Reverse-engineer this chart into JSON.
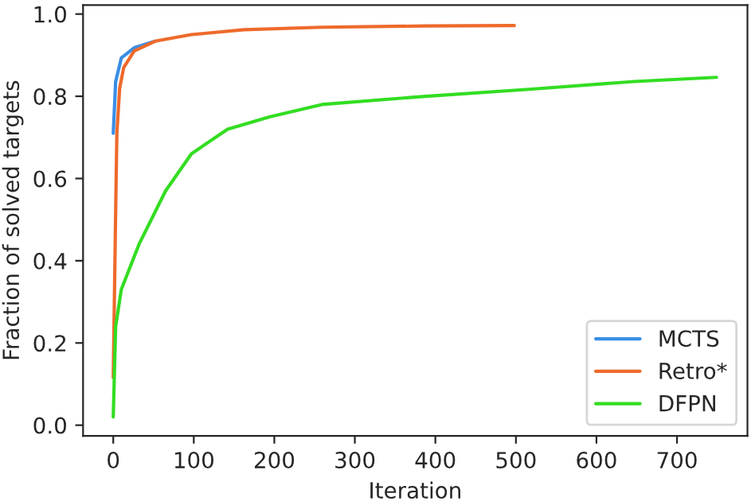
{
  "chart_data": {
    "type": "line",
    "xlabel": "Iteration",
    "ylabel": "Fraction of solved targets",
    "xlim": [
      -37.5,
      787.5
    ],
    "ylim": [
      -0.026,
      1.022
    ],
    "xticks": [
      0,
      100,
      200,
      300,
      400,
      500,
      600,
      700
    ],
    "yticks": [
      {
        "value": 0,
        "label": "0.0"
      },
      0.2,
      0.4,
      0.6,
      0.8,
      {
        "value": 1,
        "label": "1.0"
      }
    ],
    "grid": false,
    "legend": "bottom right",
    "line_style": "solid",
    "marker": "none",
    "series": [
      {
        "name": "MCTS",
        "color": "#3a8ee6",
        "x": [
          0,
          3,
          10,
          26,
          52
        ],
        "values": [
          0.71,
          0.836,
          0.893,
          0.918,
          0.934
        ]
      },
      {
        "name": "Retro*",
        "color": "#ee6a2c",
        "x": [
          0,
          3,
          4.5,
          8,
          13,
          26,
          52,
          97,
          162,
          259,
          388,
          498
        ],
        "values": [
          0.116,
          0.52,
          0.71,
          0.82,
          0.87,
          0.91,
          0.934,
          0.95,
          0.962,
          0.968,
          0.971,
          0.972
        ]
      },
      {
        "name": "DFPN",
        "color": "#33dd22",
        "x": [
          0,
          3,
          10,
          32,
          65,
          97,
          142,
          194,
          259,
          388,
          517,
          647,
          749
        ],
        "values": [
          0.02,
          0.24,
          0.33,
          0.44,
          0.57,
          0.66,
          0.72,
          0.75,
          0.78,
          0.8,
          0.817,
          0.836,
          0.846
        ]
      }
    ]
  }
}
